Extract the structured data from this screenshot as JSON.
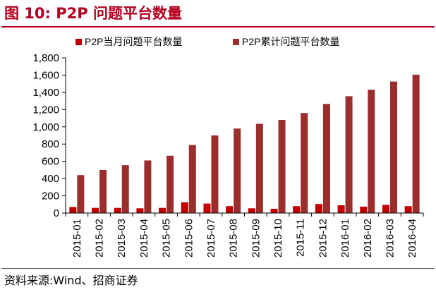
{
  "figure": {
    "title": "图 10:  P2P 问题平台数量",
    "source": "资料来源:Wind、招商证券"
  },
  "chart_data": {
    "type": "bar",
    "title": "",
    "xlabel": "",
    "ylabel": "",
    "categories": [
      "2015-01",
      "2015-02",
      "2015-03",
      "2015-04",
      "2015-05",
      "2015-06",
      "2015-07",
      "2015-08",
      "2015-09",
      "2015-10",
      "2015-11",
      "2015-12",
      "2016-01",
      "2016-02",
      "2016-03",
      "2016-04"
    ],
    "series": [
      {
        "name": "P2P当月问题平台数量",
        "color": "#c00000",
        "values": [
          70,
          60,
          60,
          55,
          60,
          125,
          110,
          80,
          55,
          50,
          80,
          105,
          90,
          75,
          95,
          80
        ]
      },
      {
        "name": "P2P累计问题平台数量",
        "color": "#9b2d2d",
        "values": [
          440,
          500,
          555,
          610,
          665,
          790,
          900,
          980,
          1035,
          1080,
          1160,
          1265,
          1355,
          1430,
          1525,
          1605
        ]
      }
    ],
    "ylim": [
      0,
      1800
    ],
    "yticks": [
      0,
      200,
      400,
      600,
      800,
      1000,
      1200,
      1400,
      1600,
      1800
    ],
    "ytick_labels": [
      "0",
      "200",
      "400",
      "600",
      "800",
      "1,000",
      "1,200",
      "1,400",
      "1,600",
      "1,800"
    ],
    "grid": false,
    "legend_position": "top"
  }
}
